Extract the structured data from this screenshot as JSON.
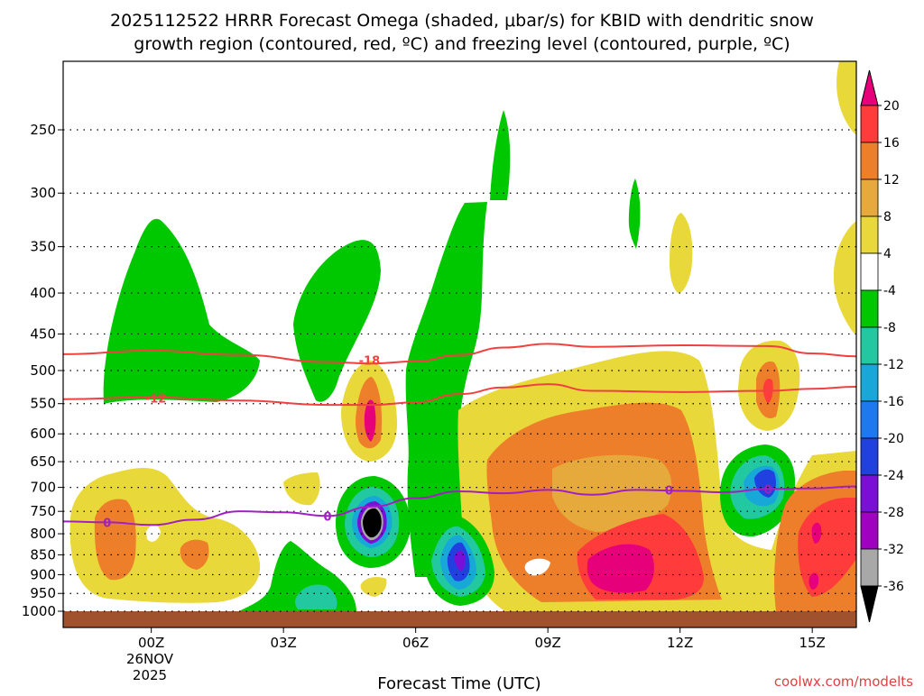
{
  "chart_data": {
    "type": "contour-cross-section",
    "title_line1": "2025112522 HRRR Forecast Omega (shaded, μbar/s) for KBID with dendritic snow",
    "title_line2": "growth region (contoured, red, ºC) and freezing level (contoured, purple, ºC)",
    "xlabel": "Forecast Time (UTC)",
    "ylabel": "",
    "x_ticks": [
      {
        "label": "00Z",
        "hours": 2
      },
      {
        "label": "03Z",
        "hours": 5
      },
      {
        "label": "06Z",
        "hours": 8
      },
      {
        "label": "09Z",
        "hours": 11
      },
      {
        "label": "12Z",
        "hours": 14
      },
      {
        "label": "15Z",
        "hours": 17
      }
    ],
    "date_label_line1": "26NOV",
    "date_label_line2": "2025",
    "x_range_hours": [
      0,
      18
    ],
    "y_ticks_hpa": [
      250,
      300,
      350,
      400,
      450,
      500,
      550,
      600,
      650,
      700,
      750,
      800,
      850,
      900,
      950,
      1000
    ],
    "y_range_hpa": [
      200,
      1010
    ],
    "colorbar": {
      "labels": [
        "20",
        "16",
        "12",
        "8",
        "4",
        "-4",
        "-8",
        "-12",
        "-16",
        "-20",
        "-24",
        "-28",
        "-32",
        "-36"
      ],
      "colors": [
        "#e6007a",
        "#ff3b3b",
        "#ee7f2a",
        "#e6a93c",
        "#e8d83a",
        "#ffffff",
        "#00c800",
        "#22c8a0",
        "#18a8d8",
        "#1e78f0",
        "#2040e0",
        "#7a10d8",
        "#a000c0",
        "#a8a8a8"
      ],
      "top_color": "#e6007a",
      "bottom_color": "#000000"
    },
    "series": [
      {
        "name": "-18 C isotherm (dendritic growth top)",
        "label": "-18",
        "color": "#f04040",
        "x_hours": [
          0,
          2,
          4,
          6,
          7,
          8,
          9,
          10,
          11,
          12,
          14,
          16,
          17,
          18
        ],
        "p_hpa": [
          477,
          472,
          478,
          488,
          490,
          487,
          478,
          468,
          463,
          467,
          465,
          466,
          476,
          480
        ]
      },
      {
        "name": "-12 C isotherm (dendritic growth bottom)",
        "label": "-12",
        "color": "#f04040",
        "x_hours": [
          0,
          2,
          4,
          6,
          7,
          8,
          9,
          10,
          11,
          12,
          14,
          16,
          17,
          18
        ],
        "p_hpa": [
          543,
          540,
          545,
          552,
          552,
          548,
          535,
          525,
          520,
          530,
          532,
          530,
          527,
          524
        ]
      },
      {
        "name": "0 C freezing level",
        "label": "0",
        "color": "#a020c0",
        "x_hours": [
          0,
          1,
          2,
          3,
          4,
          5,
          6,
          7,
          8,
          9,
          10,
          11,
          12,
          13,
          14,
          15,
          16,
          17,
          18
        ],
        "p_hpa": [
          772,
          774,
          780,
          768,
          750,
          752,
          760,
          740,
          722,
          708,
          712,
          705,
          715,
          705,
          707,
          710,
          703,
          702,
          698
        ]
      }
    ],
    "contour_labels": [
      {
        "text": "-18",
        "x_hours": 6.95,
        "p_hpa": 485
      },
      {
        "text": "-12",
        "x_hours": 2.1,
        "p_hpa": 541
      },
      {
        "text": "0",
        "x_hours": 1.0,
        "p_hpa": 774
      },
      {
        "text": "0",
        "x_hours": 6.0,
        "p_hpa": 760
      },
      {
        "text": "0",
        "x_hours": 13.75,
        "p_hpa": 705
      },
      {
        "text": "0",
        "x_hours": 16.0,
        "p_hpa": 703
      }
    ]
  },
  "watermark": "coolwx.com/modelts"
}
